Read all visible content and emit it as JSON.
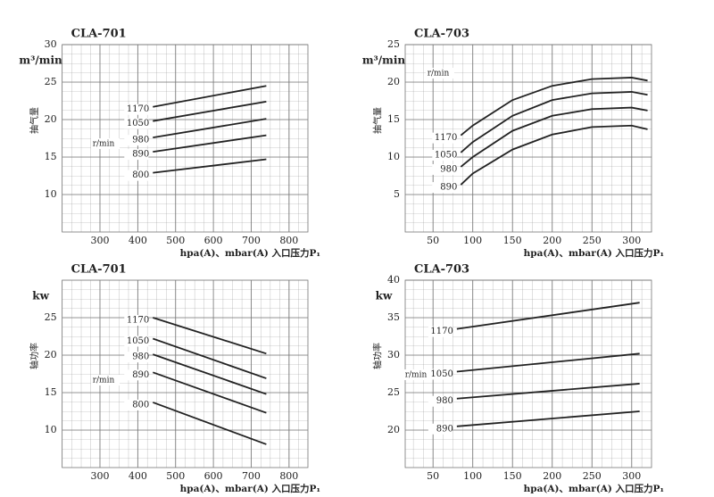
{
  "chart_data": [
    {
      "type": "line",
      "title": "CLA-701",
      "y_unit": "m³/min",
      "ylabel": "抽气量",
      "xlabel": "hpa(A)、mbar(A) 入口压力P₁",
      "annotation": "r/min",
      "x": [
        440,
        740
      ],
      "xlim": [
        200,
        850
      ],
      "xticks": [
        300,
        400,
        500,
        600,
        700,
        800
      ],
      "ylim": [
        5,
        30
      ],
      "yticks": [
        10,
        15,
        20,
        25,
        30
      ],
      "grid": true,
      "series": [
        {
          "name": "1170",
          "color": "#222222",
          "values": [
            21.7,
            24.5
          ]
        },
        {
          "name": "1050",
          "color": "#222222",
          "values": [
            19.8,
            22.4
          ]
        },
        {
          "name": "980",
          "color": "#222222",
          "values": [
            17.6,
            20.1
          ]
        },
        {
          "name": "890",
          "color": "#222222",
          "values": [
            15.7,
            17.9
          ]
        },
        {
          "name": "800",
          "color": "#222222",
          "values": [
            12.9,
            14.7
          ]
        }
      ]
    },
    {
      "type": "line",
      "title": "CLA-703",
      "y_unit": "m³/min",
      "ylabel": "抽气量",
      "xlabel": "hpa(A)、mbar(A) 入口压力P₁",
      "annotation": "r/min",
      "x": [
        85,
        100,
        150,
        200,
        250,
        300,
        320
      ],
      "xlim": [
        15,
        325
      ],
      "xticks": [
        50,
        100,
        150,
        200,
        250,
        300
      ],
      "ylim": [
        0,
        25
      ],
      "yticks": [
        5,
        10,
        15,
        20,
        25
      ],
      "grid": true,
      "series": [
        {
          "name": "1170",
          "color": "#222222",
          "values": [
            12.9,
            14.2,
            17.6,
            19.5,
            20.4,
            20.6,
            20.2
          ]
        },
        {
          "name": "1050",
          "color": "#222222",
          "values": [
            10.6,
            12,
            15.5,
            17.6,
            18.5,
            18.7,
            18.3
          ]
        },
        {
          "name": "980",
          "color": "#222222",
          "values": [
            8.7,
            10,
            13.5,
            15.5,
            16.4,
            16.6,
            16.2
          ]
        },
        {
          "name": "890",
          "color": "#222222",
          "values": [
            6.3,
            7.8,
            11,
            13,
            14,
            14.2,
            13.7
          ]
        }
      ]
    },
    {
      "type": "line",
      "title": "CLA-701",
      "y_unit": "kw",
      "ylabel": "轴功率",
      "xlabel": "hpa(A)、mbar(A) 入口压力P₁",
      "annotation": "r/min",
      "x": [
        440,
        740
      ],
      "xlim": [
        200,
        850
      ],
      "xticks": [
        300,
        400,
        500,
        600,
        700,
        800
      ],
      "ylim": [
        5,
        30
      ],
      "yticks": [
        10,
        15,
        20,
        25
      ],
      "grid": true,
      "series": [
        {
          "name": "1170",
          "color": "#222222",
          "values": [
            25,
            20.2
          ]
        },
        {
          "name": "1050",
          "color": "#222222",
          "values": [
            22.2,
            16.9
          ]
        },
        {
          "name": "980",
          "color": "#222222",
          "values": [
            20.1,
            14.8
          ]
        },
        {
          "name": "890",
          "color": "#222222",
          "values": [
            17.7,
            12.3
          ]
        },
        {
          "name": "800",
          "color": "#222222",
          "values": [
            13.7,
            8.1
          ]
        }
      ]
    },
    {
      "type": "line",
      "title": "CLA-703",
      "y_unit": "kw",
      "ylabel": "轴功率",
      "xlabel": "hpa(A)、mbar(A) 入口压力P₁",
      "annotation": "r/min",
      "x": [
        80,
        310
      ],
      "xlim": [
        15,
        325
      ],
      "xticks": [
        50,
        100,
        150,
        200,
        250,
        300
      ],
      "ylim": [
        15,
        40
      ],
      "yticks": [
        20,
        25,
        30,
        35,
        40
      ],
      "grid": true,
      "series": [
        {
          "name": "1170",
          "color": "#222222",
          "values": [
            33.5,
            37
          ]
        },
        {
          "name": "1050",
          "color": "#222222",
          "values": [
            27.8,
            30.2
          ]
        },
        {
          "name": "980",
          "color": "#222222",
          "values": [
            24.2,
            26.2
          ]
        },
        {
          "name": "890",
          "color": "#222222",
          "values": [
            20.5,
            22.5
          ]
        }
      ]
    }
  ]
}
